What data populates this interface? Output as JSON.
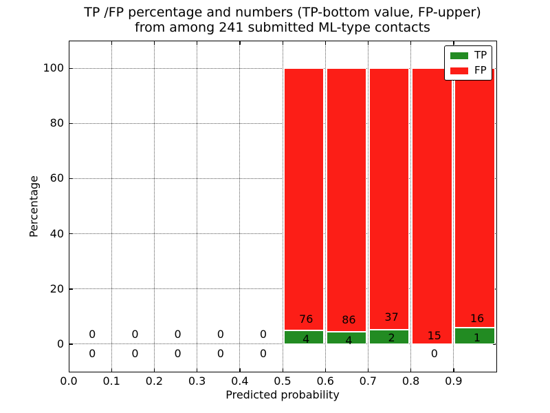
{
  "title": {
    "line1": "TP /FP percentage and numbers (TP-bottom value, FP-upper)",
    "line2": "from among 241 submitted ML-type contacts"
  },
  "axes": {
    "xlabel": "Predicted probability",
    "ylabel": "Percentage"
  },
  "legend": {
    "position": "upper right",
    "items": [
      {
        "label": "TP",
        "color": "#228b22"
      },
      {
        "label": "FP",
        "color": "#fc1e17"
      }
    ]
  },
  "chart_data": {
    "type": "bar",
    "stacked": true,
    "title": "TP /FP percentage and numbers (TP-bottom value, FP-upper) from among 241 submitted ML-type contacts",
    "xlabel": "Predicted probability",
    "ylabel": "Percentage",
    "xlim": [
      0.0,
      1.0
    ],
    "ylim": [
      -10,
      110
    ],
    "xticks": [
      "0.0",
      "0.1",
      "0.2",
      "0.3",
      "0.4",
      "0.5",
      "0.6",
      "0.7",
      "0.8",
      "0.9"
    ],
    "yticks": [
      0,
      20,
      40,
      60,
      80,
      100
    ],
    "grid": "dotted",
    "legend_position": "upper right",
    "total_submitted": 241,
    "bin_width": 0.1,
    "note": "bars show percent of bin total (TP bottom green, FP upper red); bars only drawn where bin total > 0; annotation numbers are raw counts",
    "series": [
      {
        "name": "TP",
        "color": "#228b22",
        "counts": [
          0,
          0,
          0,
          0,
          0,
          4,
          4,
          2,
          0,
          1
        ]
      },
      {
        "name": "FP",
        "color": "#fc1e17",
        "counts": [
          0,
          0,
          0,
          0,
          0,
          76,
          86,
          37,
          15,
          16
        ]
      }
    ],
    "bins": [
      {
        "x": 0.0,
        "tp": 0,
        "fp": 0,
        "tp_pct": 0,
        "fp_pct": 0,
        "labels": {
          "fp": {
            "text": "0",
            "y": 3.5
          },
          "tp": {
            "text": "0",
            "y": -3.5
          }
        }
      },
      {
        "x": 0.1,
        "tp": 0,
        "fp": 0,
        "tp_pct": 0,
        "fp_pct": 0,
        "labels": {
          "fp": {
            "text": "0",
            "y": 3.5
          },
          "tp": {
            "text": "0",
            "y": -3.5
          }
        }
      },
      {
        "x": 0.2,
        "tp": 0,
        "fp": 0,
        "tp_pct": 0,
        "fp_pct": 0,
        "labels": {
          "fp": {
            "text": "0",
            "y": 3.5
          },
          "tp": {
            "text": "0",
            "y": -3.5
          }
        }
      },
      {
        "x": 0.3,
        "tp": 0,
        "fp": 0,
        "tp_pct": 0,
        "fp_pct": 0,
        "labels": {
          "fp": {
            "text": "0",
            "y": 3.5
          },
          "tp": {
            "text": "0",
            "y": -3.5
          }
        }
      },
      {
        "x": 0.4,
        "tp": 0,
        "fp": 0,
        "tp_pct": 0,
        "fp_pct": 0,
        "labels": {
          "fp": {
            "text": "0",
            "y": 3.5
          },
          "tp": {
            "text": "0",
            "y": -3.5
          }
        }
      },
      {
        "x": 0.5,
        "tp": 4,
        "fp": 76,
        "tp_pct": 5.0,
        "fp_pct": 95.0,
        "labels": {
          "fp": {
            "text": "76",
            "y": 9.0
          },
          "tp": {
            "text": "4",
            "y": 1.8
          }
        }
      },
      {
        "x": 0.6,
        "tp": 4,
        "fp": 86,
        "tp_pct": 4.44,
        "fp_pct": 95.56,
        "labels": {
          "fp": {
            "text": "86",
            "y": 8.6
          },
          "tp": {
            "text": "4",
            "y": 1.3
          }
        }
      },
      {
        "x": 0.7,
        "tp": 2,
        "fp": 37,
        "tp_pct": 5.13,
        "fp_pct": 94.87,
        "labels": {
          "fp": {
            "text": "37",
            "y": 9.6
          },
          "tp": {
            "text": "2",
            "y": 2.1
          }
        }
      },
      {
        "x": 0.8,
        "tp": 0,
        "fp": 15,
        "tp_pct": 0.0,
        "fp_pct": 100.0,
        "labels": {
          "fp": {
            "text": "15",
            "y": 3.0
          },
          "tp": {
            "text": "0",
            "y": -3.5
          }
        }
      },
      {
        "x": 0.9,
        "tp": 1,
        "fp": 16,
        "tp_pct": 5.88,
        "fp_pct": 94.12,
        "labels": {
          "fp": {
            "text": "16",
            "y": 9.3
          },
          "tp": {
            "text": "1",
            "y": 2.1
          }
        }
      }
    ]
  }
}
